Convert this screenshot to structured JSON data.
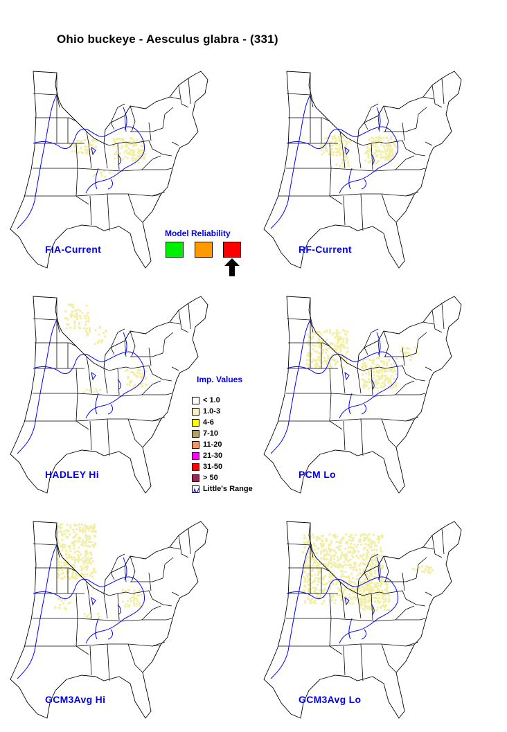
{
  "title": "Ohio buckeye - Aesculus glabra - (331)",
  "maps": [
    {
      "label": "FIA-Current"
    },
    {
      "label": "RF-Current"
    },
    {
      "label": "HADLEY Hi"
    },
    {
      "label": "PCM Lo"
    },
    {
      "label": "GCM3Avg Hi"
    },
    {
      "label": "GCM3Avg Lo"
    }
  ],
  "reliability": {
    "title": "Model Reliability",
    "boxes": [
      {
        "color": "#00ee00"
      },
      {
        "color": "#ff9900"
      },
      {
        "color": "#ff0000",
        "selected": true
      }
    ]
  },
  "legend": {
    "title": "Imp. Values",
    "items": [
      {
        "label": "< 1.0",
        "color": "#ffffff"
      },
      {
        "label": "1.0-3",
        "color": "#fff0c8"
      },
      {
        "label": "4-6",
        "color": "#ffff00"
      },
      {
        "label": "7-10",
        "color": "#b5a15a"
      },
      {
        "label": "11-20",
        "color": "#f0956a"
      },
      {
        "label": "21-30",
        "color": "#ff00ff"
      },
      {
        "label": "31-50",
        "color": "#ff0000"
      },
      {
        "label": "> 50",
        "color": "#a0205a"
      },
      {
        "label": "Little's Range",
        "color": "range-icon"
      }
    ]
  },
  "colors": {
    "label_blue": "#0000ee",
    "range_line": "#0000ff",
    "state_line": "#000000",
    "presence": "#f3eea5"
  }
}
